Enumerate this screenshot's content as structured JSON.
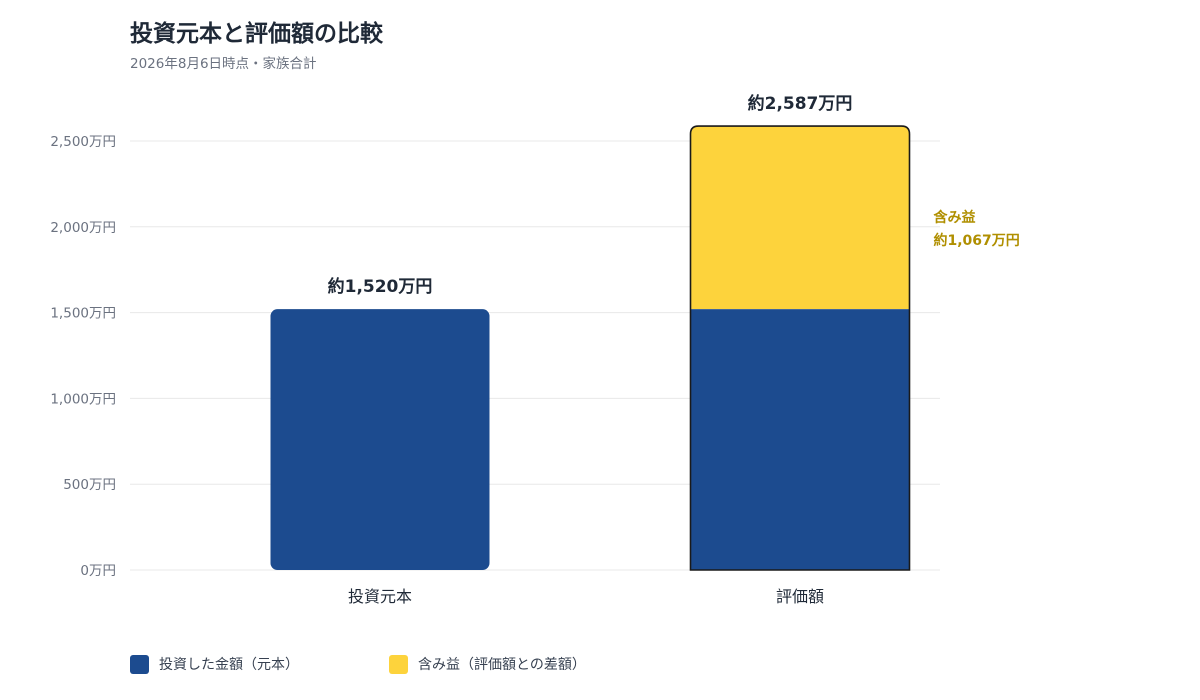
{
  "header": {
    "title": "投資元本と評価額の比較",
    "subtitle": "2026年8月6日時点・家族合計"
  },
  "colors": {
    "principal": "#1c4b8f",
    "gain": "#fdd33c",
    "gain_text": "#b08f00",
    "grid": "#e8e8e8",
    "axis_text": "#6b7280",
    "label_text": "#1f2937"
  },
  "chart_data": {
    "type": "bar",
    "stacked": true,
    "title": "投資元本と評価額の比較",
    "subtitle": "2026年8月6日時点・家族合計",
    "categories": [
      "投資元本",
      "評価額"
    ],
    "series": [
      {
        "name": "投資した金額（元本）",
        "values": [
          1520,
          1520
        ]
      },
      {
        "name": "含み益（評価額との差額）",
        "values": [
          0,
          1067
        ]
      }
    ],
    "totals": [
      1520,
      2587
    ],
    "total_labels": [
      "約1,520万円",
      "約2,587万円"
    ],
    "segment_annotation": {
      "category": "評価額",
      "line1": "含み益",
      "line2": "約1,067万円"
    },
    "y_unit": "万円",
    "ylim": [
      0,
      2500
    ],
    "yticks": [
      0,
      500,
      1000,
      1500,
      2000,
      2500
    ],
    "ytick_labels": [
      "0万円",
      "500万円",
      "1,000万円",
      "1,500万円",
      "2,000万円",
      "2,500万円"
    ],
    "xlabel": "",
    "ylabel": "",
    "grid": true,
    "legend_position": "bottom-left"
  }
}
